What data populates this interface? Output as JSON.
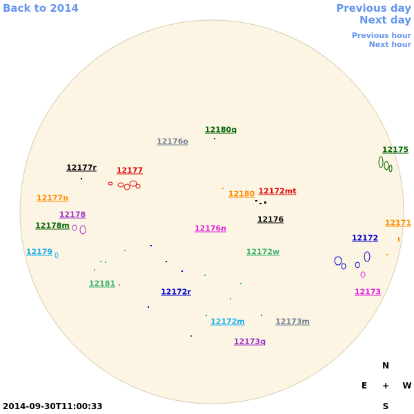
{
  "nav": {
    "back": "Back to 2014",
    "previous_day": "Previous day",
    "next_day": "Next day",
    "previous_hour": "Previous hour",
    "next_hour": "Next hour",
    "color": "#6495ed"
  },
  "timestamp": "2014-09-30T11:00:33",
  "compass": {
    "north": "N",
    "east": "E",
    "center": "+",
    "west": "W",
    "south": "S"
  },
  "regions": [
    {
      "label": "12180q",
      "color": "#006400"
    },
    {
      "label": "12176o",
      "color": "#708090"
    },
    {
      "label": "12175",
      "color": "#006400"
    },
    {
      "label": "12177r",
      "color": "#000000"
    },
    {
      "label": "12177",
      "color": "#dd0000"
    },
    {
      "label": "12172mt",
      "color": "#dd0000"
    },
    {
      "label": "12180",
      "color": "#ff8c00"
    },
    {
      "label": "12177n",
      "color": "#ff8c00"
    },
    {
      "label": "12178",
      "color": "#9932cc"
    },
    {
      "label": "12176",
      "color": "#000000"
    },
    {
      "label": "12176n",
      "color": "#e020e0"
    },
    {
      "label": "12178m",
      "color": "#006400"
    },
    {
      "label": "12171",
      "color": "#ff8c00"
    },
    {
      "label": "12172",
      "color": "#0000cd"
    },
    {
      "label": "12179",
      "color": "#1ab0e8"
    },
    {
      "label": "12172w",
      "color": "#3cb371"
    },
    {
      "label": "12181",
      "color": "#3cb371"
    },
    {
      "label": "12173",
      "color": "#e020e0"
    },
    {
      "label": "12172r",
      "color": "#0000cd"
    },
    {
      "label": "12172m",
      "color": "#1ab0e8"
    },
    {
      "label": "12173m",
      "color": "#708090"
    },
    {
      "label": "12173q",
      "color": "#9932cc"
    }
  ]
}
